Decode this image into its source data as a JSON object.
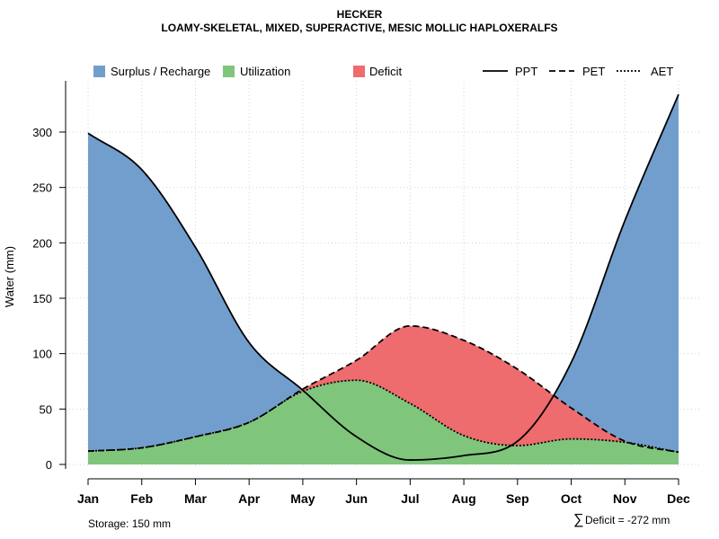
{
  "chart_data": {
    "type": "area",
    "title": "HECKER",
    "subtitle": "LOAMY-SKELETAL, MIXED, SUPERACTIVE, MESIC MOLLIC HAPLOXERALFS",
    "xlabel": "",
    "ylabel": "Water (mm)",
    "categories": [
      "Jan",
      "Feb",
      "Mar",
      "Apr",
      "May",
      "Jun",
      "Jul",
      "Aug",
      "Sep",
      "Oct",
      "Nov",
      "Dec"
    ],
    "y_ticks": [
      0,
      50,
      100,
      150,
      200,
      250,
      300
    ],
    "ylim": [
      -5,
      345
    ],
    "grid": true,
    "legend": [
      {
        "label": "Surplus / Recharge",
        "kind": "fill",
        "color": "#729ECE"
      },
      {
        "label": "Utilization",
        "kind": "fill",
        "color": "#7FC57C"
      },
      {
        "label": "Deficit",
        "kind": "fill",
        "color": "#EE6B6E"
      },
      {
        "label": "PPT",
        "kind": "line",
        "dash": "solid"
      },
      {
        "label": "PET",
        "kind": "line",
        "dash": "dashed"
      },
      {
        "label": "AET",
        "kind": "line",
        "dash": "dotted"
      }
    ],
    "series": [
      {
        "name": "PPT",
        "values": [
          299,
          266,
          196,
          110,
          67,
          25,
          4,
          8,
          21,
          92,
          220,
          334
        ]
      },
      {
        "name": "PET",
        "values": [
          12,
          15,
          25,
          38,
          68,
          94,
          125,
          112,
          86,
          51,
          21,
          11
        ]
      },
      {
        "name": "AET",
        "values": [
          12,
          15,
          25,
          38,
          66,
          76,
          55,
          26,
          17,
          23,
          20,
          11
        ]
      }
    ],
    "annotations": {
      "storage": "Storage: 150 mm",
      "deficit_symbol": "∑",
      "deficit": "Deficit = -272 mm"
    }
  }
}
